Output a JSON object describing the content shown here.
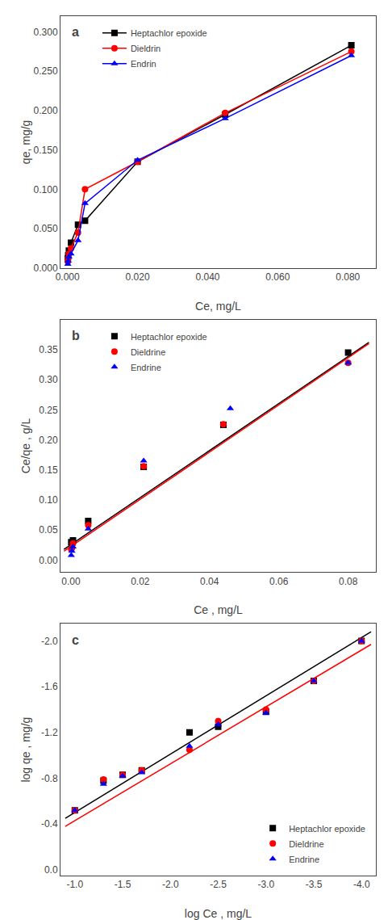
{
  "chart_data": [
    {
      "type": "line",
      "title": "a",
      "xlabel": "Ce, mg/L",
      "ylabel": "qe, mg/g",
      "xlim": [
        -0.002,
        0.088
      ],
      "ylim": [
        0.0,
        0.32
      ],
      "xticks": [
        {
          "value": 0.0,
          "label": "0.000"
        },
        {
          "value": 0.02,
          "label": "0.020"
        },
        {
          "value": 0.04,
          "label": "0.040"
        },
        {
          "value": 0.06,
          "label": "0.060"
        },
        {
          "value": 0.08,
          "label": "0.080"
        }
      ],
      "yticks": [
        {
          "value": 0.0,
          "label": "0.000"
        },
        {
          "value": 0.05,
          "label": "0.050"
        },
        {
          "value": 0.1,
          "label": "0.100"
        },
        {
          "value": 0.15,
          "label": "0.150"
        },
        {
          "value": 0.2,
          "label": "0.200"
        },
        {
          "value": 0.25,
          "label": "0.250"
        },
        {
          "value": 0.3,
          "label": "0.300"
        }
      ],
      "grid": false,
      "legend": "upper left",
      "series": [
        {
          "name": "Heptachlor epoxide",
          "color": "#000000",
          "marker": "square",
          "x": [
            0.0001,
            0.0002,
            0.0004,
            0.001,
            0.003,
            0.005,
            0.02,
            0.045,
            0.081
          ],
          "values": [
            0.012,
            0.016,
            0.022,
            0.032,
            0.055,
            0.06,
            0.135,
            0.195,
            0.283
          ]
        },
        {
          "name": "Dieldrin",
          "color": "#ff0000",
          "marker": "circle",
          "x": [
            0.0001,
            0.0002,
            0.0004,
            0.001,
            0.003,
            0.005,
            0.02,
            0.045,
            0.081
          ],
          "values": [
            0.008,
            0.012,
            0.018,
            0.025,
            0.045,
            0.1,
            0.135,
            0.197,
            0.275
          ]
        },
        {
          "name": "Endrin",
          "color": "#0000ff",
          "marker": "triangle-up",
          "x": [
            0.0001,
            0.0002,
            0.0004,
            0.001,
            0.003,
            0.005,
            0.02,
            0.045,
            0.081
          ],
          "values": [
            0.005,
            0.009,
            0.014,
            0.018,
            0.035,
            0.082,
            0.137,
            0.19,
            0.27
          ]
        }
      ]
    },
    {
      "type": "scatter",
      "title": "b",
      "xlabel": "Ce , mg/L",
      "ylabel": "Ce/qe , g/L",
      "xlim": [
        -0.003,
        0.088
      ],
      "ylim": [
        -0.02,
        0.4
      ],
      "xticks": [
        {
          "value": 0.0,
          "label": "0.00"
        },
        {
          "value": 0.02,
          "label": "0.02"
        },
        {
          "value": 0.04,
          "label": "0.04"
        },
        {
          "value": 0.06,
          "label": "0.06"
        },
        {
          "value": 0.08,
          "label": "0.08"
        }
      ],
      "yticks": [
        {
          "value": 0.0,
          "label": "0.00"
        },
        0.05,
        {
          "value": 0.1,
          "label": "0.10"
        },
        0.15,
        {
          "value": 0.2,
          "label": "0.20"
        },
        0.25,
        {
          "value": 0.3,
          "label": "0.30"
        },
        0.35
      ],
      "grid": false,
      "legend": "upper left",
      "series": [
        {
          "type": "line",
          "color": "#000000",
          "x": [
            -0.002,
            0.086
          ],
          "values": [
            0.018,
            0.362
          ]
        },
        {
          "type": "line",
          "color": "#ff0000",
          "x": [
            -0.002,
            0.086
          ],
          "values": [
            0.015,
            0.36
          ]
        },
        {
          "name": "Heptachlor epoxide",
          "color": "#000000",
          "marker": "square",
          "x": [
            0.0001,
            0.0003,
            0.0006,
            0.005,
            0.021,
            0.044,
            0.08
          ],
          "values": [
            0.03,
            0.028,
            0.033,
            0.065,
            0.155,
            0.225,
            0.345
          ]
        },
        {
          "name": "Dieldrine",
          "color": "#ff0000",
          "marker": "circle",
          "x": [
            0.0001,
            0.0003,
            0.0006,
            0.005,
            0.021,
            0.044,
            0.08
          ],
          "values": [
            0.018,
            0.02,
            0.028,
            0.058,
            0.156,
            0.226,
            0.328
          ]
        },
        {
          "name": "Endrine",
          "color": "#0000ff",
          "marker": "triangle-up",
          "x": [
            0.0001,
            0.0003,
            0.0006,
            0.005,
            0.021,
            0.046,
            0.08
          ],
          "values": [
            0.008,
            0.015,
            0.022,
            0.052,
            0.165,
            0.252,
            0.328
          ]
        }
      ]
    },
    {
      "type": "scatter",
      "title": "c",
      "xlabel": "log Ce , mg/L",
      "ylabel": "log qe , mg/g",
      "xlim": [
        -0.85,
        -4.15
      ],
      "ylim": [
        0.05,
        -2.15
      ],
      "xticks": [
        {
          "value": -1.0,
          "label": "-1.0"
        },
        -1.5,
        {
          "value": -2.0,
          "label": "-2.0"
        },
        -2.5,
        {
          "value": -3.0,
          "label": "-3.0"
        },
        -3.5,
        {
          "value": -4.0,
          "label": "-4.0"
        }
      ],
      "yticks": [
        {
          "value": 0.0,
          "label": "0.0"
        },
        -0.4,
        -0.8,
        -1.2,
        -1.6,
        {
          "value": -2.0,
          "label": "-2.0"
        }
      ],
      "grid": false,
      "legend": "lower right",
      "series": [
        {
          "type": "line",
          "color": "#000000",
          "x": [
            -0.9,
            -4.1
          ],
          "values": [
            -0.45,
            -2.08
          ]
        },
        {
          "type": "line",
          "color": "#ff0000",
          "x": [
            -0.9,
            -4.1
          ],
          "values": [
            -0.38,
            -1.97
          ]
        },
        {
          "name": "Heptachlor epoxide",
          "color": "#000000",
          "marker": "square",
          "x": [
            -1.0,
            -1.3,
            -1.5,
            -1.7,
            -2.2,
            -2.5,
            -3.0,
            -3.5,
            -4.0
          ],
          "values": [
            -0.52,
            -0.78,
            -0.83,
            -0.87,
            -1.2,
            -1.25,
            -1.38,
            -1.65,
            -2.0
          ]
        },
        {
          "name": "Dieldrine",
          "color": "#ff0000",
          "marker": "circle",
          "x": [
            -1.0,
            -1.3,
            -1.5,
            -1.7,
            -2.2,
            -2.5,
            -3.0,
            -3.5,
            -4.0
          ],
          "values": [
            -0.52,
            -0.79,
            -0.83,
            -0.87,
            -1.05,
            -1.3,
            -1.4,
            -1.65,
            -2.0
          ]
        },
        {
          "name": "Endrine",
          "color": "#0000ff",
          "marker": "triangle-up",
          "x": [
            -1.0,
            -1.3,
            -1.5,
            -1.7,
            -2.2,
            -2.5,
            -3.0,
            -3.5,
            -4.0
          ],
          "values": [
            -0.52,
            -0.75,
            -0.82,
            -0.85,
            -1.08,
            -1.27,
            -1.37,
            -1.65,
            -2.0
          ]
        }
      ]
    }
  ]
}
